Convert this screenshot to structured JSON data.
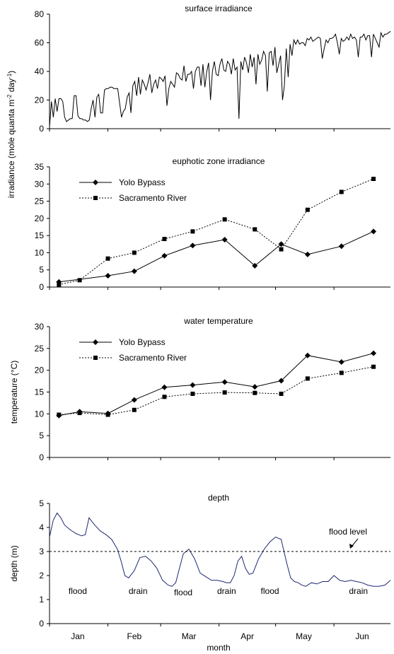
{
  "figure": {
    "shared_ylabel": "irradiance (mole quanta m",
    "shared_ylabel_sup1": "-2",
    "shared_ylabel_mid": " day",
    "shared_ylabel_sup2": "-1",
    "shared_ylabel_end": ")",
    "xlabel": "month",
    "months": [
      "Jan",
      "Feb",
      "Mar",
      "Apr",
      "May",
      "Jun"
    ]
  },
  "chart_data": [
    {
      "type": "line",
      "title": "surface irradiance",
      "ylabel": "",
      "ylim": [
        0,
        80
      ],
      "yticks": [
        "0",
        "20",
        "40",
        "60",
        "80"
      ],
      "x_range_days": [
        1,
        182
      ],
      "series": [
        {
          "values": [
            1,
            19,
            8,
            21,
            12,
            21,
            21,
            19,
            8,
            5,
            6,
            7,
            7,
            23,
            23,
            9,
            7,
            7,
            6,
            6,
            5,
            6,
            14,
            20,
            8,
            22,
            24,
            11,
            11,
            27,
            28,
            28,
            29,
            29,
            28,
            28,
            28,
            18,
            8,
            12,
            14,
            22,
            25,
            11,
            30,
            33,
            23,
            36,
            24,
            34,
            31,
            27,
            32,
            38,
            25,
            31,
            34,
            28,
            36,
            35,
            33,
            37,
            16,
            28,
            33,
            31,
            29,
            39,
            38,
            35,
            34,
            44,
            33,
            38,
            38,
            40,
            28,
            40,
            43,
            43,
            30,
            45,
            29,
            40,
            46,
            20,
            40,
            47,
            38,
            37,
            45,
            49,
            41,
            40,
            47,
            45,
            38,
            49,
            41,
            43,
            7,
            47,
            41,
            50,
            46,
            39,
            52,
            43,
            50,
            31,
            52,
            45,
            48,
            54,
            51,
            26,
            53,
            54,
            44,
            57,
            39,
            45,
            51,
            20,
            30,
            56,
            36,
            59,
            51,
            62,
            59,
            62,
            59,
            60,
            60,
            58,
            63,
            62,
            64,
            61,
            62,
            63,
            64,
            63,
            49,
            56,
            62,
            60,
            63,
            63,
            64,
            66,
            60,
            52,
            63,
            61,
            62,
            64,
            62,
            66,
            63,
            64,
            62,
            50,
            64,
            64,
            66,
            62,
            65,
            65,
            50,
            66,
            63,
            60,
            57,
            67,
            64,
            66,
            66,
            67,
            68
          ]
        }
      ]
    },
    {
      "type": "line",
      "title": "euphotic zone irradiance",
      "ylabel": "",
      "ylim": [
        0,
        35
      ],
      "yticks": [
        "0",
        "5",
        "10",
        "15",
        "20",
        "25",
        "30",
        "35"
      ],
      "x_range_days": [
        1,
        182
      ],
      "series": [
        {
          "name": "Yolo Bypass",
          "marker": "diamond",
          "style": "solid",
          "x": [
            6,
            32,
            46,
            62,
            77,
            94,
            110,
            124,
            138,
            156,
            173
          ],
          "values": [
            1.5,
            3.3,
            4.6,
            9.1,
            12.1,
            13.8,
            6.2,
            12.5,
            9.5,
            11.9,
            16.2
          ]
        },
        {
          "name": "Sacramento River",
          "marker": "square",
          "style": "dotted",
          "x": [
            6,
            17,
            32,
            46,
            62,
            77,
            94,
            110,
            124,
            138,
            156,
            173
          ],
          "values": [
            0.7,
            2.0,
            8.3,
            10.0,
            14.0,
            16.2,
            19.7,
            16.8,
            11.0,
            22.5,
            27.7,
            31.5
          ]
        }
      ]
    },
    {
      "type": "line",
      "title": "water temperature",
      "ylabel": "temperature (°C)",
      "ylim": [
        0,
        30
      ],
      "yticks": [
        "0",
        "5",
        "10",
        "15",
        "20",
        "25",
        "30"
      ],
      "x_range_days": [
        1,
        182
      ],
      "series": [
        {
          "name": "Yolo Bypass",
          "marker": "diamond",
          "style": "solid",
          "x": [
            6,
            17,
            32,
            46,
            62,
            77,
            94,
            110,
            124,
            138,
            156,
            173
          ],
          "values": [
            9.6,
            10.5,
            10.1,
            13.2,
            16.1,
            16.6,
            17.3,
            16.2,
            17.6,
            23.4,
            21.9,
            23.9
          ]
        },
        {
          "name": "Sacramento River",
          "marker": "square",
          "style": "dotted",
          "x": [
            6,
            17,
            32,
            46,
            62,
            77,
            94,
            110,
            124,
            138,
            156,
            173
          ],
          "values": [
            9.8,
            10.2,
            9.8,
            10.9,
            13.9,
            14.6,
            14.9,
            14.8,
            14.6,
            18.1,
            19.4,
            20.8
          ]
        }
      ]
    },
    {
      "type": "line",
      "title": "depth",
      "ylabel": "depth (m)",
      "ylim": [
        0,
        5
      ],
      "yticks": [
        "0",
        "1",
        "2",
        "3",
        "4",
        "5"
      ],
      "x_range_days": [
        1,
        182
      ],
      "xticks": [
        "Jan",
        "Feb",
        "Mar",
        "Apr",
        "May",
        "Jun"
      ],
      "xlabel": "month",
      "reference_line": {
        "label": "flood level",
        "value": 3.0
      },
      "annotations": [
        {
          "text": "flood",
          "x": 16,
          "y": 1.35
        },
        {
          "text": "drain",
          "x": 48,
          "y": 1.35
        },
        {
          "text": "flood",
          "x": 72,
          "y": 1.3
        },
        {
          "text": "drain",
          "x": 95,
          "y": 1.35
        },
        {
          "text": "flood",
          "x": 118,
          "y": 1.35
        },
        {
          "text": "drain",
          "x": 165,
          "y": 1.35
        }
      ],
      "series": [
        {
          "color": "#1c2a6e",
          "x": [
            1,
            3,
            5,
            7,
            9,
            12,
            15,
            18,
            20,
            22,
            25,
            28,
            31,
            34,
            37,
            39,
            41,
            43,
            46,
            49,
            52,
            55,
            58,
            61,
            64,
            66,
            68,
            70,
            72,
            75,
            78,
            81,
            84,
            87,
            90,
            93,
            95,
            97,
            99,
            101,
            103,
            105,
            107,
            109,
            112,
            115,
            118,
            121,
            124,
            127,
            129,
            131,
            133,
            135,
            137,
            140,
            143,
            146,
            149,
            152,
            155,
            158,
            161,
            164,
            167,
            170,
            173,
            176,
            179,
            182
          ],
          "values": [
            3.6,
            4.3,
            4.6,
            4.4,
            4.1,
            3.9,
            3.75,
            3.65,
            3.7,
            4.4,
            4.1,
            3.85,
            3.7,
            3.5,
            3.1,
            2.6,
            2.0,
            1.9,
            2.2,
            2.75,
            2.8,
            2.6,
            2.3,
            1.8,
            1.6,
            1.55,
            1.7,
            2.3,
            2.9,
            3.1,
            2.7,
            2.1,
            1.95,
            1.8,
            1.8,
            1.75,
            1.7,
            1.7,
            2.0,
            2.6,
            2.8,
            2.3,
            2.05,
            2.1,
            2.7,
            3.1,
            3.4,
            3.6,
            3.5,
            2.5,
            1.9,
            1.75,
            1.7,
            1.6,
            1.55,
            1.7,
            1.65,
            1.75,
            1.75,
            2.0,
            1.8,
            1.75,
            1.8,
            1.75,
            1.7,
            1.6,
            1.55,
            1.55,
            1.6,
            1.8
          ]
        }
      ]
    }
  ]
}
